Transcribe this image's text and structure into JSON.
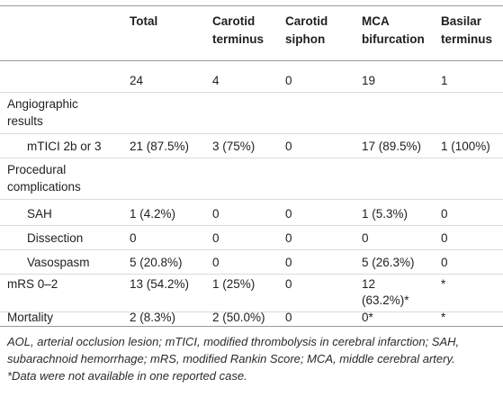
{
  "headers": {
    "total": "Total",
    "ct_line1": "Carotid",
    "ct_line2": "terminus",
    "cs_line1": "Carotid",
    "cs_line2": "siphon",
    "mca_line1": "MCA",
    "mca_line2": "bifurcation",
    "bt_line1": "Basilar",
    "bt_line2": "terminus"
  },
  "rows": {
    "count": {
      "label": "",
      "total": "24",
      "ct": "4",
      "cs": "0",
      "mca": "19",
      "bt": "1"
    },
    "angio": {
      "label_line1": "Angiographic",
      "label_line2": "results"
    },
    "mtici": {
      "label": "mTICI 2b or 3",
      "total": "21 (87.5%)",
      "ct": "3 (75%)",
      "cs": "0",
      "mca": "17 (89.5%)",
      "bt": "1 (100%)"
    },
    "proc": {
      "label_line1": "Procedural",
      "label_line2": "complications"
    },
    "sah": {
      "label": "SAH",
      "total": "1 (4.2%)",
      "ct": "0",
      "cs": "0",
      "mca": "1 (5.3%)",
      "bt": "0"
    },
    "dissection": {
      "label": "Dissection",
      "total": "0",
      "ct": "0",
      "cs": "0",
      "mca": "0",
      "bt": "0"
    },
    "vasospasm": {
      "label": "Vasospasm",
      "total": "5 (20.8%)",
      "ct": "0",
      "cs": "0",
      "mca": "5 (26.3%)",
      "bt": "0"
    },
    "mrs": {
      "label": "mRS 0–2",
      "total": "13 (54.2%)",
      "ct": "1 (25%)",
      "cs": "0",
      "mca_line1": "12",
      "mca_line2": "(63.2%)*",
      "bt": "*"
    },
    "mortality": {
      "label": "Mortality",
      "total": "2 (8.3%)",
      "ct": "2 (50.0%)",
      "cs": "0",
      "mca": "0*",
      "bt": "*"
    }
  },
  "footnotes": {
    "abbrev": "AOL, arterial occlusion lesion; mTICI, modified thrombolysis in cerebral infarction; SAH, subarachnoid hemorrhage; mRS, modified Rankin Score; MCA, middle cerebral artery.",
    "missing": "*Data were not available in one reported case."
  }
}
